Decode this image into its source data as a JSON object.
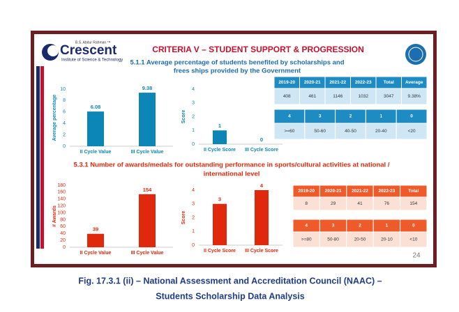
{
  "slide": {
    "logo": {
      "top": "B.S. Abdur Rahman ™",
      "name": "Crescent",
      "sub": "Institute of Science & Technology"
    },
    "title": "CRITERIA V – STUDENT SUPPORT & PROGRESSION",
    "section1": [
      "5.1.1 Average percentage of students benefited by scholarships and",
      "frees ships provided by the Government"
    ],
    "section2": [
      "5.3.1 Number of awards/medals for outstanding performance in sports/cultural activities at national /",
      "international level"
    ],
    "page_number": "24",
    "tables": [
      {
        "rows": [
          [
            "2019-20",
            "2020-21",
            "2021-22",
            "2022-23",
            "Total",
            "Average"
          ],
          [
            "408",
            "461",
            "1146",
            "1032",
            "3047",
            "9.38%"
          ]
        ]
      },
      {
        "rows": [
          [
            "4",
            "3",
            "2",
            "1",
            "0"
          ],
          [
            ">=60",
            "50-60",
            "40-50",
            "20-40",
            "<20"
          ]
        ]
      },
      {
        "rows": [
          [
            "2019-20",
            "2020-21",
            "2021-22",
            "2022-23",
            "Total"
          ],
          [
            "8",
            "29",
            "41",
            "76",
            "154"
          ]
        ]
      },
      {
        "rows": [
          [
            "4",
            "3",
            "2",
            "1",
            "0"
          ],
          [
            ">=80",
            "50-80",
            "20-50",
            "20-10",
            "<10"
          ]
        ]
      }
    ]
  },
  "chart_data": [
    {
      "type": "bar",
      "y_label": "Average percentage",
      "categories": [
        "II Cycle Value",
        "III Cycle Value"
      ],
      "values": [
        6.08,
        9.38
      ],
      "color": "#0b86b6",
      "ylim": [
        0,
        10
      ],
      "yticks": [
        0,
        2,
        4,
        6,
        8,
        10
      ]
    },
    {
      "type": "bar",
      "y_label": "Score",
      "categories": [
        "II Cycle Score",
        "III Cycle Score"
      ],
      "values": [
        1,
        0
      ],
      "color": "#0b86b6",
      "ylim": [
        0,
        4
      ],
      "yticks": [
        0,
        1,
        2,
        3,
        4
      ]
    },
    {
      "type": "bar",
      "y_label": "# Awards",
      "categories": [
        "II Cycle Value",
        "III Cycle Value"
      ],
      "values": [
        39,
        154
      ],
      "color": "#e0290c",
      "ylim": [
        0,
        180
      ],
      "yticks": [
        0,
        20,
        40,
        60,
        80,
        100,
        120,
        140,
        160,
        180
      ]
    },
    {
      "type": "bar",
      "y_label": "Score",
      "categories": [
        "II Cycle Score",
        "III Cycle Score"
      ],
      "values": [
        3,
        4
      ],
      "color": "#e0290c",
      "ylim": [
        0,
        4
      ],
      "yticks": [
        0,
        1,
        2,
        3,
        4
      ]
    }
  ],
  "caption": [
    "Fig. 17.3.1 (ii) – National Assessment and Accreditation Council (NAAC) –",
    "Students Scholarship Data Analysis"
  ]
}
